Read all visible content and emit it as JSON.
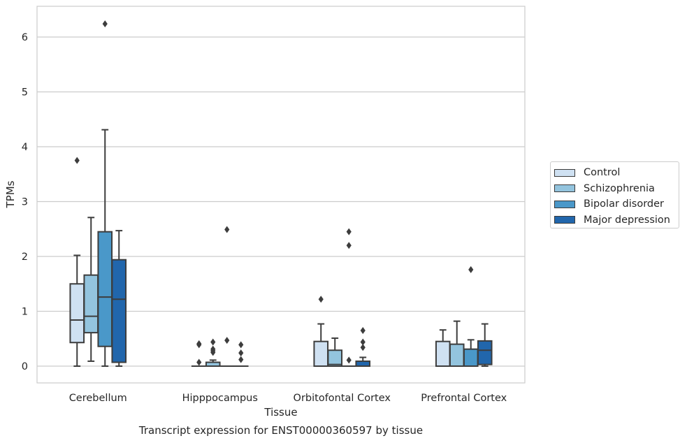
{
  "caption": "Transcript expression for ENST00000360597 by tissue",
  "chart_data": {
    "type": "box",
    "xlabel": "Tissue",
    "ylabel": "TPMs",
    "ylim": [
      -0.3,
      6.55
    ],
    "yticks": [
      0,
      1,
      2,
      3,
      4,
      5,
      6
    ],
    "categories": [
      "Cerebellum",
      "Hipppocampus",
      "Orbitofontal Cortex",
      "Prefrontal Cortex"
    ],
    "grid": true,
    "legend_position": "right",
    "series": [
      {
        "name": "Control",
        "color": "#cfe1f2",
        "boxes": [
          {
            "whislo": 0.0,
            "q1": 0.43,
            "med": 0.84,
            "q3": 1.5,
            "whishi": 2.02,
            "fliers": [
              3.75
            ]
          },
          {
            "whislo": 0.0,
            "q1": 0.0,
            "med": 0.0,
            "q3": 0.0,
            "whishi": 0.0,
            "fliers": [
              0.07,
              0.39,
              0.41
            ]
          },
          {
            "whislo": 0.0,
            "q1": 0.0,
            "med": 0.0,
            "q3": 0.45,
            "whishi": 0.77,
            "fliers": [
              1.22
            ]
          },
          {
            "whislo": 0.0,
            "q1": 0.0,
            "med": 0.0,
            "q3": 0.45,
            "whishi": 0.66,
            "fliers": []
          }
        ]
      },
      {
        "name": "Schizophrenia",
        "color": "#93c4de",
        "boxes": [
          {
            "whislo": 0.09,
            "q1": 0.61,
            "med": 0.91,
            "q3": 1.66,
            "whishi": 2.71,
            "fliers": []
          },
          {
            "whislo": 0.0,
            "q1": 0.0,
            "med": 0.0,
            "q3": 0.07,
            "whishi": 0.11,
            "fliers": [
              0.25,
              0.28,
              0.31,
              0.44
            ]
          },
          {
            "whislo": 0.0,
            "q1": 0.0,
            "med": 0.03,
            "q3": 0.29,
            "whishi": 0.51,
            "fliers": []
          },
          {
            "whislo": 0.0,
            "q1": 0.0,
            "med": 0.0,
            "q3": 0.4,
            "whishi": 0.82,
            "fliers": []
          }
        ]
      },
      {
        "name": "Bipolar disorder",
        "color": "#4a98c9",
        "boxes": [
          {
            "whislo": 0.0,
            "q1": 0.36,
            "med": 1.26,
            "q3": 2.45,
            "whishi": 4.31,
            "fliers": [
              6.24
            ]
          },
          {
            "whislo": 0.0,
            "q1": 0.0,
            "med": 0.0,
            "q3": 0.0,
            "whishi": 0.0,
            "fliers": [
              0.47,
              2.49
            ]
          },
          {
            "whislo": 0.0,
            "q1": 0.0,
            "med": 0.0,
            "q3": 0.0,
            "whishi": 0.0,
            "fliers": [
              0.11,
              2.2,
              2.45
            ]
          },
          {
            "whislo": 0.0,
            "q1": 0.0,
            "med": 0.0,
            "q3": 0.31,
            "whishi": 0.48,
            "fliers": [
              1.76
            ]
          }
        ]
      },
      {
        "name": "Major depression",
        "color": "#2166ac",
        "boxes": [
          {
            "whislo": 0.0,
            "q1": 0.07,
            "med": 1.22,
            "q3": 1.94,
            "whishi": 2.47,
            "fliers": []
          },
          {
            "whislo": 0.0,
            "q1": 0.0,
            "med": 0.0,
            "q3": 0.0,
            "whishi": 0.0,
            "fliers": [
              0.12,
              0.24,
              0.39
            ]
          },
          {
            "whislo": 0.0,
            "q1": 0.0,
            "med": 0.0,
            "q3": 0.09,
            "whishi": 0.16,
            "fliers": [
              0.34,
              0.44,
              0.65
            ]
          },
          {
            "whislo": 0.0,
            "q1": 0.03,
            "med": 0.29,
            "q3": 0.46,
            "whishi": 0.77,
            "fliers": []
          }
        ]
      }
    ]
  }
}
